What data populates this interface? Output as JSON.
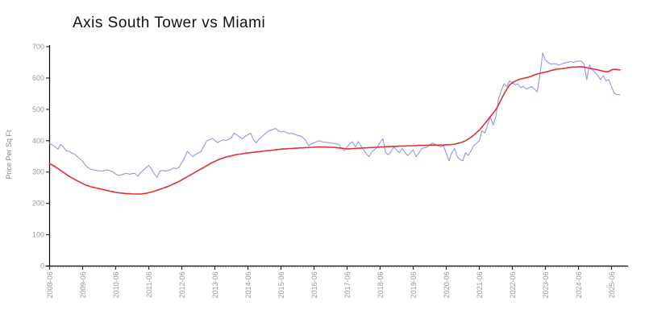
{
  "page": {
    "background": "#ffffff"
  },
  "chart": {
    "title": "Axis South Tower vs Miami",
    "y_axis_label": "Price Per Sq Ft"
  },
  "style": {
    "axis_color": "#000000",
    "major_tick_color": "#333333",
    "minor_tick_color": "#b8b8b8",
    "tick_label_color": "#999999",
    "axis_label_color": "#888888",
    "title_color": "#111111",
    "blue_line_color": "#9494ea",
    "red_line_color": "#e03030"
  },
  "chart_data": {
    "type": "line",
    "title": "Axis South Tower vs Miami",
    "xlabel": "",
    "ylabel": "Price Per Sq Ft",
    "ylim": [
      0,
      700
    ],
    "yticks": [
      0,
      100,
      200,
      300,
      400,
      500,
      600,
      700
    ],
    "grid": false,
    "legend": "none",
    "x_frequency": "monthly",
    "x_start": "2008-06",
    "x_tick_labels": [
      "2008-06",
      "2009-06",
      "2010-06",
      "2011-06",
      "2012-06",
      "2013-06",
      "2014-06",
      "2015-06",
      "2016-06",
      "2017-06",
      "2018-06",
      "2019-06",
      "2020-06",
      "2021-06",
      "2022-06",
      "2023-06",
      "2024-06",
      "2025-06"
    ],
    "series": [
      {
        "name": "Axis South Tower",
        "color": "#9494ea",
        "line_width": 1.1,
        "values": [
          392,
          386,
          381,
          373,
          388,
          380,
          368,
          366,
          361,
          357,
          350,
          342,
          334,
          322,
          314,
          309,
          307,
          305,
          304,
          303,
          305,
          307,
          304,
          300,
          294,
          289,
          291,
          294,
          296,
          293,
          295,
          296,
          286,
          298,
          305,
          314,
          321,
          310,
          295,
          283,
          303,
          305,
          303,
          305,
          308,
          313,
          311,
          315,
          330,
          345,
          366,
          357,
          349,
          356,
          361,
          366,
          382,
          399,
          403,
          407,
          401,
          394,
          399,
          403,
          401,
          404,
          410,
          424,
          418,
          412,
          406,
          414,
          419,
          424,
          403,
          393,
          405,
          412,
          420,
          428,
          433,
          436,
          439,
          432,
          428,
          430,
          426,
          422,
          424,
          420,
          417,
          415,
          410,
          400,
          384,
          390,
          393,
          397,
          400,
          396,
          395,
          394,
          393,
          392,
          390,
          388,
          375,
          368,
          380,
          390,
          397,
          380,
          397,
          383,
          371,
          358,
          349,
          365,
          372,
          380,
          395,
          406,
          362,
          355,
          366,
          380,
          370,
          362,
          375,
          363,
          353,
          362,
          371,
          349,
          360,
          375,
          377,
          380,
          386,
          393,
          388,
          384,
          380,
          384,
          360,
          336,
          362,
          375,
          349,
          340,
          336,
          362,
          353,
          368,
          385,
          392,
          400,
          432,
          424,
          450,
          476,
          450,
          476,
          534,
          560,
          582,
          573,
          591,
          585,
          578,
          582,
          569,
          574,
          565,
          569,
          573,
          565,
          556,
          610,
          680,
          657,
          650,
          644,
          646,
          644,
          642,
          645,
          648,
          650,
          653,
          650,
          652,
          654,
          654,
          645,
          595,
          642,
          626,
          617,
          608,
          595,
          608,
          591,
          595,
          573,
          551,
          547,
          547
        ]
      },
      {
        "name": "Miami",
        "color": "#e03030",
        "line_width": 1.6,
        "values": [
          327,
          322,
          317,
          311,
          305,
          299,
          293,
          287,
          282,
          277,
          272,
          268,
          263,
          259,
          256,
          253,
          251,
          249,
          247,
          245,
          243,
          241,
          239,
          237,
          235,
          234,
          233,
          232,
          231,
          231,
          230,
          230,
          230,
          230,
          231,
          232,
          234,
          236,
          239,
          242,
          245,
          248,
          251,
          254,
          258,
          262,
          266,
          270,
          275,
          280,
          285,
          290,
          295,
          300,
          305,
          310,
          315,
          320,
          325,
          330,
          334,
          338,
          342,
          345,
          348,
          350,
          352,
          354,
          356,
          357,
          358,
          360,
          361,
          362,
          363,
          364,
          365,
          366,
          367,
          368,
          369,
          370,
          371,
          372,
          373,
          374,
          374,
          375,
          375,
          376,
          376,
          377,
          377,
          378,
          378,
          379,
          379,
          380,
          380,
          380,
          380,
          379,
          379,
          379,
          378,
          377,
          376,
          375,
          374,
          374,
          375,
          375,
          376,
          376,
          377,
          377,
          378,
          378,
          379,
          379,
          380,
          380,
          381,
          381,
          382,
          382,
          382,
          383,
          383,
          383,
          384,
          384,
          384,
          384,
          385,
          385,
          385,
          385,
          386,
          386,
          386,
          386,
          386,
          386,
          387,
          387,
          388,
          389,
          391,
          393,
          396,
          400,
          405,
          411,
          418,
          426,
          434,
          444,
          455,
          466,
          477,
          488,
          499,
          515,
          532,
          550,
          565,
          578,
          585,
          590,
          594,
          597,
          599,
          601,
          603,
          606,
          610,
          613,
          615,
          617,
          619,
          621,
          624,
          626,
          628,
          629,
          630,
          631,
          633,
          634,
          635,
          635,
          636,
          636,
          635,
          633,
          631,
          629,
          628,
          626,
          624,
          622,
          620,
          621,
          626,
          628,
          627,
          626
        ]
      }
    ]
  }
}
